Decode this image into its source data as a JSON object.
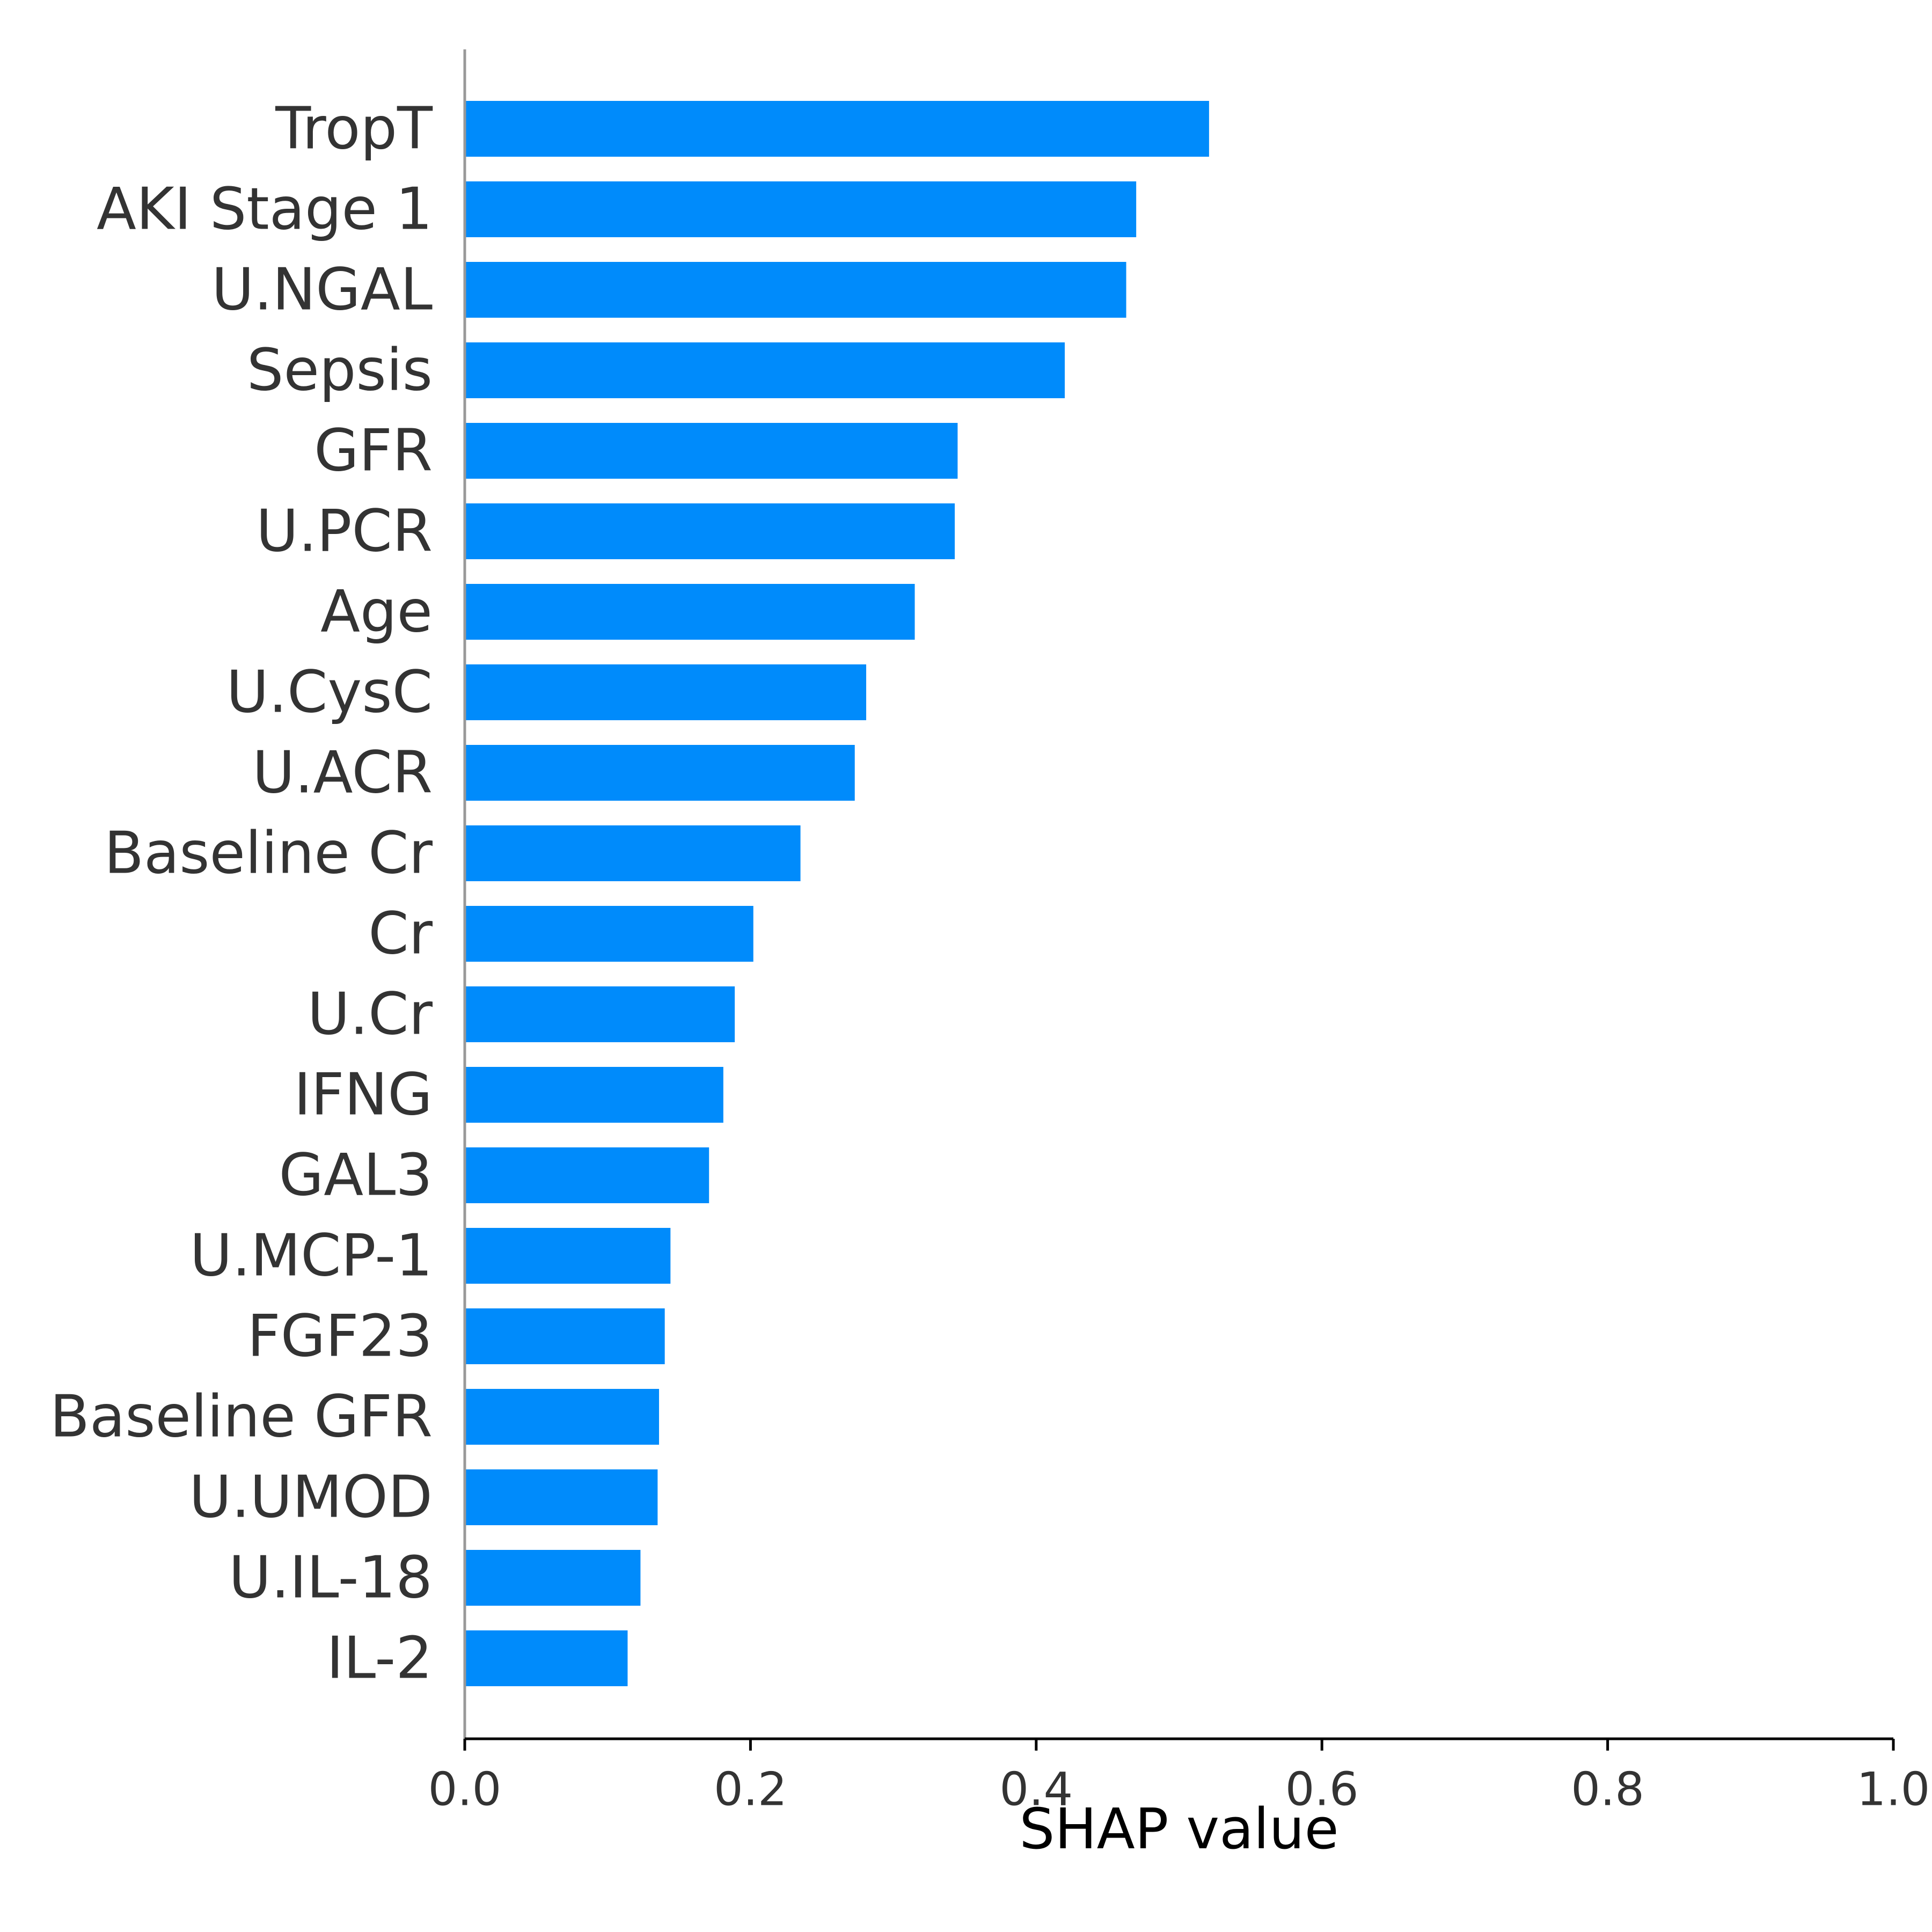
{
  "chart_data": {
    "type": "bar",
    "orientation": "horizontal",
    "categories": [
      "TropT",
      "AKI Stage 1",
      "U.NGAL",
      "Sepsis",
      "GFR",
      "U.PCR",
      "Age",
      "U.CysC",
      "U.ACR",
      "Baseline Cr",
      "Cr",
      "U.Cr",
      "IFNG",
      "GAL3",
      "U.MCP-1",
      "FGF23",
      "Baseline GFR",
      "U.UMOD",
      "U.IL-18",
      "IL-2"
    ],
    "values": [
      0.521,
      0.47,
      0.463,
      0.42,
      0.345,
      0.343,
      0.315,
      0.281,
      0.273,
      0.235,
      0.202,
      0.189,
      0.181,
      0.171,
      0.144,
      0.14,
      0.136,
      0.135,
      0.123,
      0.114
    ],
    "xlabel": "SHAP value",
    "ylabel": "",
    "xlim": [
      0.0,
      1.0
    ],
    "xticks": [
      "0.0",
      "0.2",
      "0.4",
      "0.6",
      "0.8",
      "1.0"
    ],
    "bar_color": "#008bfb",
    "grid": false,
    "legend": "none"
  }
}
